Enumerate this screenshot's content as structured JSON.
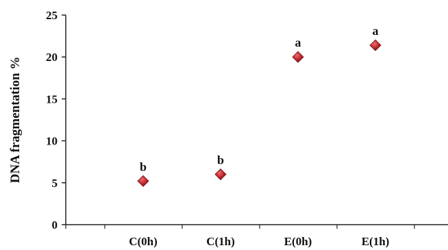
{
  "chart_data": {
    "type": "scatter",
    "categories": [
      "C(0h)",
      "C(1h)",
      "E(0h)",
      "E(1h)"
    ],
    "values": [
      5.2,
      6.0,
      20.0,
      21.4
    ],
    "point_labels": [
      "b",
      "b",
      "a",
      "a"
    ],
    "ylabel": "DNA fragmentation %",
    "xlabel": "",
    "ylim": [
      0,
      25
    ],
    "yticks": [
      0,
      5,
      10,
      15,
      20,
      25
    ],
    "grid": false,
    "marker": "diamond",
    "marker_color": "#c0282e"
  }
}
